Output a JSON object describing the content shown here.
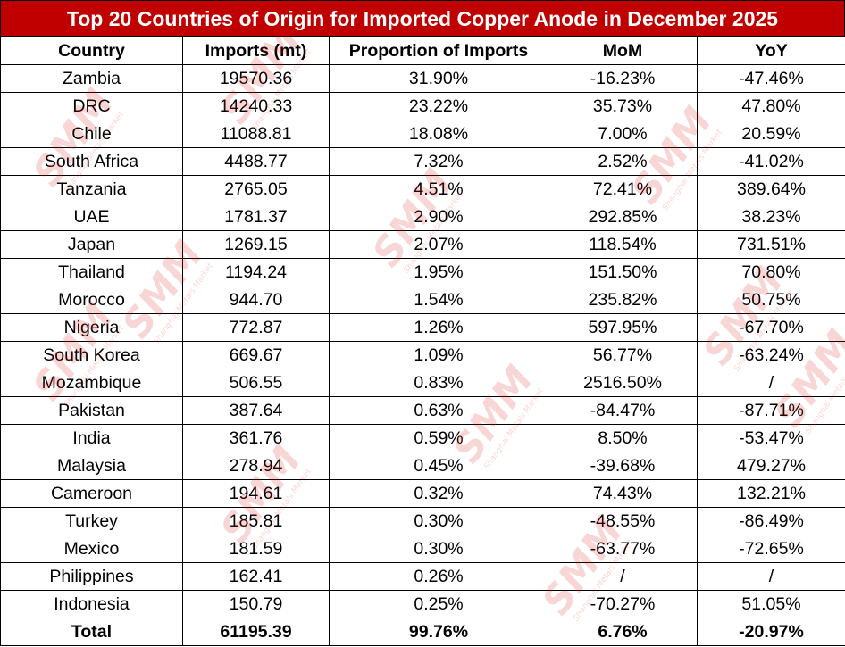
{
  "title": "Top 20 Countries of Origin for Imported Copper Anode in December 2025",
  "watermark": {
    "text": "SMM",
    "subtext": "Shanghai Metals Market",
    "color": "#e02020"
  },
  "colors": {
    "header_bg": "#c00000",
    "header_text": "#ffffff"
  },
  "chart_data": {
    "type": "table",
    "title": "Top 20 Countries of Origin for Imported Copper Anode in December 2025",
    "columns": [
      "Country",
      "Imports (mt)",
      "Proportion of Imports",
      "MoM",
      "YoY"
    ],
    "rows": [
      [
        "Zambia",
        "19570.36",
        "31.90%",
        "-16.23%",
        "-47.46%"
      ],
      [
        "DRC",
        "14240.33",
        "23.22%",
        "35.73%",
        "47.80%"
      ],
      [
        "Chile",
        "11088.81",
        "18.08%",
        "7.00%",
        "20.59%"
      ],
      [
        "South Africa",
        "4488.77",
        "7.32%",
        "2.52%",
        "-41.02%"
      ],
      [
        "Tanzania",
        "2765.05",
        "4.51%",
        "72.41%",
        "389.64%"
      ],
      [
        "UAE",
        "1781.37",
        "2.90%",
        "292.85%",
        "38.23%"
      ],
      [
        "Japan",
        "1269.15",
        "2.07%",
        "118.54%",
        "731.51%"
      ],
      [
        "Thailand",
        "1194.24",
        "1.95%",
        "151.50%",
        "70.80%"
      ],
      [
        "Morocco",
        "944.70",
        "1.54%",
        "235.82%",
        "50.75%"
      ],
      [
        "Nigeria",
        "772.87",
        "1.26%",
        "597.95%",
        "-67.70%"
      ],
      [
        "South Korea",
        "669.67",
        "1.09%",
        "56.77%",
        "-63.24%"
      ],
      [
        "Mozambique",
        "506.55",
        "0.83%",
        "2516.50%",
        "/"
      ],
      [
        "Pakistan",
        "387.64",
        "0.63%",
        "-84.47%",
        "-87.71%"
      ],
      [
        "India",
        "361.76",
        "0.59%",
        "8.50%",
        "-53.47%"
      ],
      [
        "Malaysia",
        "278.94",
        "0.45%",
        "-39.68%",
        "479.27%"
      ],
      [
        "Cameroon",
        "194.61",
        "0.32%",
        "74.43%",
        "132.21%"
      ],
      [
        "Turkey",
        "185.81",
        "0.30%",
        "-48.55%",
        "-86.49%"
      ],
      [
        "Mexico",
        "181.59",
        "0.30%",
        "-63.77%",
        "-72.65%"
      ],
      [
        "Philippines",
        "162.41",
        "0.26%",
        "/",
        "/"
      ],
      [
        "Indonesia",
        "150.79",
        "0.25%",
        "-70.27%",
        "51.05%"
      ]
    ],
    "total": [
      "Total",
      "61195.39",
      "99.76%",
      "6.76%",
      "-20.97%"
    ]
  }
}
